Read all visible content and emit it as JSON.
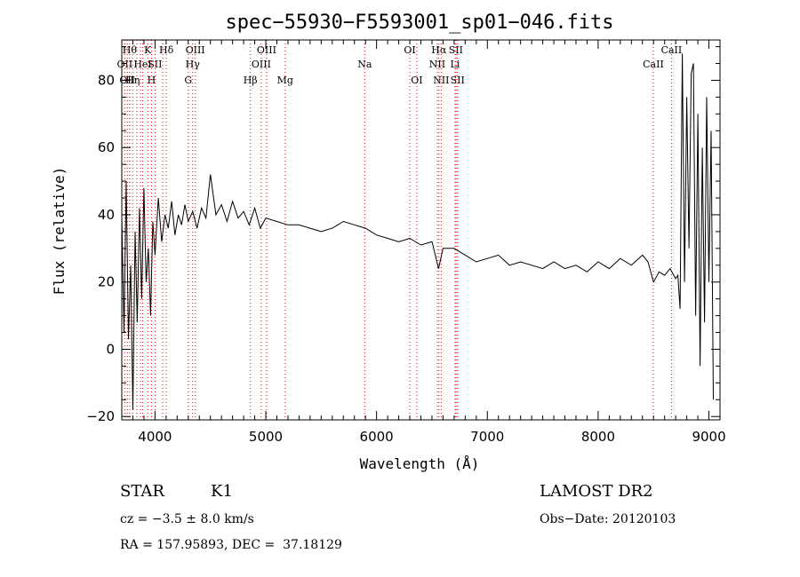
{
  "chart_data": {
    "type": "line",
    "title": "spec−55930−F5593001_sp01−046.fits",
    "xlabel": "Wavelength (Å)",
    "ylabel": "Flux (relative)",
    "xlim": [
      3700,
      9100
    ],
    "ylim": [
      -21,
      92
    ],
    "x_ticks": [
      4000,
      5000,
      6000,
      7000,
      8000,
      9000
    ],
    "y_ticks": [
      -20,
      0,
      20,
      40,
      60,
      80
    ],
    "x_tick_labels": [
      "4000",
      "5000",
      "6000",
      "7000",
      "8000",
      "9000"
    ],
    "y_tick_labels": [
      "−20",
      "0",
      "20",
      "40",
      "60",
      "80"
    ],
    "grid": false,
    "line_color": "#000000",
    "marker_color": "#ff0000",
    "series": [
      {
        "x": [
          3700,
          3720,
          3740,
          3760,
          3780,
          3800,
          3820,
          3840,
          3860,
          3880,
          3900,
          3920,
          3940,
          3960,
          3980,
          4000,
          4030,
          4060,
          4090,
          4120,
          4150,
          4180,
          4210,
          4240,
          4270,
          4300,
          4340,
          4380,
          4420,
          4460,
          4500,
          4550,
          4600,
          4650,
          4700,
          4750,
          4800,
          4850,
          4900,
          4950,
          5000,
          5100,
          5200,
          5300,
          5400,
          5500,
          5600,
          5700,
          5800,
          5900,
          6000,
          6100,
          6200,
          6300,
          6400,
          6500,
          6560,
          6600,
          6700,
          6800,
          6900,
          7000,
          7100,
          7200,
          7300,
          7400,
          7500,
          7600,
          7700,
          7800,
          7900,
          8000,
          8100,
          8200,
          8300,
          8400,
          8450,
          8500,
          8550,
          8600,
          8650,
          8700,
          8720,
          8740,
          8760,
          8780,
          8800,
          8820,
          8840,
          8860,
          8880,
          8900,
          8920,
          8940,
          8960,
          8980,
          9000,
          9020,
          9040
        ],
        "y": [
          40,
          5,
          50,
          3,
          25,
          -18,
          35,
          8,
          42,
          15,
          48,
          20,
          30,
          10,
          38,
          28,
          45,
          32,
          40,
          36,
          44,
          34,
          40,
          37,
          43,
          38,
          41,
          36,
          42,
          39,
          52,
          40,
          43,
          38,
          44,
          39,
          41,
          37,
          42,
          36,
          39,
          38,
          37,
          37,
          36,
          35,
          36,
          38,
          37,
          36,
          34,
          33,
          32,
          33,
          31,
          32,
          24,
          30,
          30,
          28,
          26,
          27,
          28,
          25,
          26,
          25,
          24,
          26,
          24,
          25,
          23,
          26,
          24,
          27,
          25,
          28,
          26,
          20,
          23,
          22,
          24,
          21,
          22,
          12,
          88,
          20,
          75,
          30,
          82,
          85,
          10,
          70,
          -5,
          60,
          8,
          75,
          20,
          65,
          -15
        ]
      }
    ],
    "line_markers": [
      {
        "wavelength": 3727,
        "label": "OII",
        "row": 1
      },
      {
        "wavelength": 3750,
        "label": "OII",
        "row": 2
      },
      {
        "wavelength": 3771,
        "label": "Hθ",
        "row": 0
      },
      {
        "wavelength": 3798,
        "label": "Hη",
        "row": 2
      },
      {
        "wavelength": 3835,
        "label": "",
        "row": 2
      },
      {
        "wavelength": 3869,
        "label": "",
        "row": 2
      },
      {
        "wavelength": 3889,
        "label": "HeI",
        "row": 1
      },
      {
        "wavelength": 3934,
        "label": "K",
        "row": 0
      },
      {
        "wavelength": 3968,
        "label": "H",
        "row": 2
      },
      {
        "wavelength": 4000,
        "label": "SII",
        "row": 1
      },
      {
        "wavelength": 4070,
        "label": "",
        "row": 2
      },
      {
        "wavelength": 4102,
        "label": "Hδ",
        "row": 0
      },
      {
        "wavelength": 4300,
        "label": "G",
        "row": 2
      },
      {
        "wavelength": 4340,
        "label": "Hγ",
        "row": 1
      },
      {
        "wavelength": 4363,
        "label": "OIII",
        "row": 0
      },
      {
        "wavelength": 4861,
        "label": "Hβ",
        "row": 2
      },
      {
        "wavelength": 4959,
        "label": "OIII",
        "row": 1
      },
      {
        "wavelength": 5007,
        "label": "OIII",
        "row": 0
      },
      {
        "wavelength": 5175,
        "label": "Mg",
        "row": 2
      },
      {
        "wavelength": 5893,
        "label": "Na",
        "row": 1
      },
      {
        "wavelength": 6300,
        "label": "OI",
        "row": 0
      },
      {
        "wavelength": 6363,
        "label": "OI",
        "row": 2
      },
      {
        "wavelength": 6548,
        "label": "NII",
        "row": 1
      },
      {
        "wavelength": 6563,
        "label": "Hα",
        "row": 0
      },
      {
        "wavelength": 6583,
        "label": "NII",
        "row": 2
      },
      {
        "wavelength": 6708,
        "label": "Li",
        "row": 1
      },
      {
        "wavelength": 6716,
        "label": "SII",
        "row": 0
      },
      {
        "wavelength": 6731,
        "label": "SII",
        "row": 2
      },
      {
        "wavelength": 8498,
        "label": "CaII",
        "row": 1
      },
      {
        "wavelength": 8662,
        "label": "CaII",
        "row": 0
      }
    ]
  },
  "info": {
    "class": "STAR",
    "subclass": "K1",
    "survey": "LAMOST DR2",
    "redshift": "cz = −3.5 ± 8.0 km/s",
    "obs_date": "Obs−Date: 20120103",
    "coords": "RA = 157.95893, DEC =  37.18129"
  }
}
